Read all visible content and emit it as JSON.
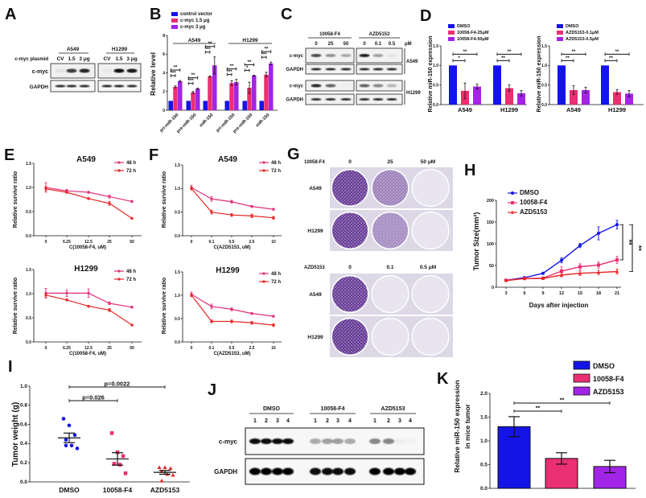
{
  "panel_labels": [
    "A",
    "B",
    "C",
    "D",
    "E",
    "F",
    "G",
    "H",
    "I",
    "J",
    "K"
  ],
  "colors": {
    "blue": "#1414e6",
    "pink": "#ea2f72",
    "purple": "#a224e6",
    "red": "#e82424",
    "magenta": "#e0307c",
    "crystal_violet": "#5a2a8c"
  },
  "blots": {
    "A": {
      "plasmid_label": "c-myc plasmid",
      "groups": [
        {
          "name": "A549",
          "lanes": [
            "CV",
            "1.5",
            "3 μg"
          ],
          "rows": [
            {
              "label": "c-myc",
              "intensity": [
                0.05,
                0.75,
                0.85
              ]
            },
            {
              "label": "GAPDH",
              "intensity": [
                0.85,
                0.85,
                0.85
              ]
            }
          ]
        },
        {
          "name": "H1299",
          "lanes": [
            "CV",
            "1.5",
            "3 μg"
          ],
          "rows": [
            {
              "label": "c-myc",
              "intensity": [
                0.03,
                0.95,
                0.9
              ]
            },
            {
              "label": "GAPDH",
              "intensity": [
                0.85,
                0.85,
                0.85
              ]
            }
          ]
        }
      ]
    },
    "C": {
      "groups": [
        {
          "name": "10058-F4",
          "lanes": [
            "0",
            "25",
            "50"
          ]
        },
        {
          "name": "AZD5153",
          "lanes": [
            "0",
            "0.1",
            "0.5"
          ]
        }
      ],
      "unit": "μM",
      "cells": [
        {
          "name": "A549",
          "rows": [
            {
              "label": "c-myc",
              "intensity": [
                [
                  0.7,
                  0.4,
                  0.3
                ],
                [
                  0.9,
                  0.35,
                  0.05
                ]
              ]
            },
            {
              "label": "GAPDH",
              "intensity": [
                [
                  0.85,
                  0.85,
                  0.85
                ],
                [
                  0.85,
                  0.85,
                  0.85
                ]
              ]
            }
          ]
        },
        {
          "name": "H1299",
          "rows": [
            {
              "label": "c-myc",
              "intensity": [
                [
                  0.85,
                  0.6,
                  0.02
                ],
                [
                  0.6,
                  0.45,
                  0.25
                ]
              ]
            },
            {
              "label": "GAPDH",
              "intensity": [
                [
                  0.85,
                  0.85,
                  0.85
                ],
                [
                  0.85,
                  0.85,
                  0.85
                ]
              ]
            }
          ]
        }
      ]
    },
    "J": {
      "groups": [
        {
          "name": "DMSO",
          "lanes": [
            "1",
            "2",
            "3",
            "4"
          ]
        },
        {
          "name": "10058-F4",
          "lanes": [
            "1",
            "2",
            "3",
            "4"
          ]
        },
        {
          "name": "AZD5153",
          "lanes": [
            "1",
            "2",
            "3",
            "4"
          ]
        }
      ],
      "rows": [
        {
          "label": "c-myc",
          "intensity": [
            0.95,
            0.95,
            0.95,
            0.95,
            0.3,
            0.35,
            0.35,
            0.3,
            0.45,
            0.45,
            0.03,
            0.02
          ]
        },
        {
          "label": "GAPDH",
          "intensity": [
            1,
            1,
            1,
            1,
            0.95,
            0.95,
            0.95,
            0.95,
            1,
            1,
            1,
            1
          ]
        }
      ]
    }
  },
  "colony_assay": {
    "blocks": [
      {
        "treatment": "10058-F4",
        "doses": [
          "0",
          "25",
          "50 μM"
        ],
        "rows": [
          {
            "cell": "A549",
            "density": [
              0.9,
              0.55,
              0.04
            ]
          },
          {
            "cell": "H1299",
            "density": [
              0.9,
              0.5,
              0.04
            ]
          }
        ]
      },
      {
        "treatment": "AZD5153",
        "doses": [
          "0",
          "0.1",
          "0.5 μM"
        ],
        "rows": [
          {
            "cell": "A549",
            "density": [
              0.9,
              0.04,
              0.04
            ]
          },
          {
            "cell": "H1299",
            "density": [
              0.92,
              0.04,
              0.04
            ]
          }
        ]
      }
    ]
  },
  "chart_data": [
    {
      "panel": "B",
      "type": "bar",
      "ylabel": "Relative level",
      "ylim": [
        0,
        8
      ],
      "yticks": [
        "0",
        "2",
        "4",
        "6",
        "8"
      ],
      "categories": [
        "pri-miR-150",
        "pre-miR-150",
        "miR-150",
        "pri-miR-150",
        "pre-miR-150",
        "miR-150"
      ],
      "groups": [
        "A549",
        "H1299"
      ],
      "series": [
        {
          "name": "control vector",
          "color": "#1414e6",
          "values": [
            1,
            1,
            1,
            1,
            1,
            1
          ],
          "errors": [
            0,
            0,
            0,
            0,
            0,
            0
          ]
        },
        {
          "name": "c-myc 1.5 μg",
          "color": "#ea2f72",
          "values": [
            2.5,
            1.9,
            3.6,
            2.9,
            2.4,
            3.8
          ],
          "errors": [
            0.1,
            0.1,
            0.05,
            0.25,
            0.6,
            0.25
          ]
        },
        {
          "name": "c-myc 3 μg",
          "color": "#a224e6",
          "values": [
            3.1,
            2.3,
            4.8,
            3.0,
            3.7,
            5.0
          ],
          "errors": [
            0.08,
            0.05,
            0.9,
            0.3,
            0.05,
            0.15
          ]
        }
      ],
      "significance": [
        [
          {
            "from": 0,
            "to": 1,
            "label": "***"
          },
          {
            "from": 0,
            "to": 2,
            "label": "**"
          }
        ],
        [
          {
            "from": 0,
            "to": 1,
            "label": "***"
          },
          {
            "from": 0,
            "to": 2,
            "label": "**"
          }
        ],
        [
          {
            "from": 0,
            "to": 1,
            "label": "***"
          },
          {
            "from": 0,
            "to": 2,
            "label": "**"
          }
        ],
        [
          {
            "from": 0,
            "to": 1,
            "label": "***"
          },
          {
            "from": 0,
            "to": 2,
            "label": "**"
          }
        ],
        [
          {
            "from": 0,
            "to": 1,
            "label": "*"
          },
          {
            "from": 0,
            "to": 2,
            "label": "**"
          }
        ],
        [
          {
            "from": 0,
            "to": 1,
            "label": "***"
          },
          {
            "from": 0,
            "to": 2,
            "label": "**"
          }
        ]
      ]
    },
    {
      "panel": "D",
      "type": "bar",
      "ylabel": "Relative miR-150 expression",
      "ylim": [
        0,
        1.5
      ],
      "yticks": [
        "0.0",
        "0.5",
        "1.0",
        "1.5"
      ],
      "categories": [
        "A549",
        "H1299"
      ],
      "series": [
        {
          "name": "DMSO",
          "color": "#1414e6",
          "values": [
            1,
            1
          ],
          "errors": [
            0,
            0
          ]
        },
        {
          "name": "10058-F4-25μM",
          "color": "#ea2f72",
          "values": [
            0.35,
            0.42
          ],
          "errors": [
            0.2,
            0.08
          ]
        },
        {
          "name": "10058-F4-50μM",
          "color": "#a224e6",
          "values": [
            0.46,
            0.29
          ],
          "errors": [
            0.06,
            0.07
          ]
        }
      ],
      "significance": [
        [
          {
            "from": 0,
            "to": 1,
            "label": "*"
          },
          {
            "from": 0,
            "to": 2,
            "label": "**"
          }
        ],
        [
          {
            "from": 0,
            "to": 1,
            "label": "**"
          },
          {
            "from": 0,
            "to": 2,
            "label": "**"
          }
        ]
      ]
    },
    {
      "panel": "D",
      "type": "bar",
      "ylabel": "Relative miR-150 expression",
      "ylim": [
        0,
        1.5
      ],
      "yticks": [
        "0.0",
        "0.5",
        "1.0",
        "1.5"
      ],
      "categories": [
        "A549",
        "H1299"
      ],
      "series": [
        {
          "name": "DMSO",
          "color": "#1414e6",
          "values": [
            1,
            1
          ],
          "errors": [
            0,
            0
          ]
        },
        {
          "name": "AZD5153-0.1μM",
          "color": "#ea2f72",
          "values": [
            0.37,
            0.32
          ],
          "errors": [
            0.11,
            0.06
          ]
        },
        {
          "name": "AZD5153-0.5μM",
          "color": "#a224e6",
          "values": [
            0.37,
            0.28
          ],
          "errors": [
            0.07,
            0.08
          ]
        }
      ],
      "significance": [
        [
          {
            "from": 0,
            "to": 1,
            "label": "**"
          },
          {
            "from": 0,
            "to": 2,
            "label": "**"
          }
        ],
        [
          {
            "from": 0,
            "to": 1,
            "label": "**"
          },
          {
            "from": 0,
            "to": 2,
            "label": "**"
          }
        ]
      ]
    },
    {
      "panel": "E",
      "type": "line",
      "title": "A549",
      "xlabel": "C(10058-F4, uM)",
      "ylabel": "Relative survive ratio",
      "ylim": [
        0,
        1.5
      ],
      "yticks": [
        "0.0",
        "0.5",
        "1.0",
        "1.5"
      ],
      "x": [
        "0",
        "6.25",
        "12.5",
        "25",
        "50"
      ],
      "series": [
        {
          "name": "48 h",
          "color": "#e0307c",
          "values": [
            1.0,
            0.93,
            0.9,
            0.81,
            0.71
          ],
          "errors": [
            0.1,
            0.03,
            0.02,
            0.03,
            0.02
          ]
        },
        {
          "name": "72 h",
          "color": "#e82424",
          "values": [
            0.97,
            0.9,
            0.77,
            0.67,
            0.36
          ],
          "errors": [
            0.04,
            0.02,
            0.02,
            0.04,
            0.02
          ]
        }
      ]
    },
    {
      "panel": "E",
      "type": "line",
      "title": "H1299",
      "xlabel": "C(10058-F4, uM)",
      "ylabel": "Relative survive ratio",
      "ylim": [
        0,
        1.5
      ],
      "yticks": [
        "0.0",
        "0.5",
        "1.0",
        "1.5"
      ],
      "x": [
        "0",
        "6.25",
        "12.5",
        "25",
        "50"
      ],
      "series": [
        {
          "name": "48 h",
          "color": "#e0307c",
          "values": [
            1.01,
            1.01,
            1.01,
            0.8,
            0.72
          ],
          "errors": [
            0.1,
            0.07,
            0.09,
            0.03,
            0.02
          ]
        },
        {
          "name": "72 h",
          "color": "#e82424",
          "values": [
            0.97,
            0.87,
            0.74,
            0.66,
            0.35
          ],
          "errors": [
            0.04,
            0.02,
            0.02,
            0.03,
            0.02
          ]
        }
      ]
    },
    {
      "panel": "F",
      "type": "line",
      "title": "A549",
      "xlabel": "C(AZD5153, uM)",
      "ylabel": "Relative survive ratio",
      "ylim": [
        0,
        1.5
      ],
      "yticks": [
        "0.0",
        "0.5",
        "1.0",
        "1.5"
      ],
      "x": [
        "0",
        "0.1",
        "0.5",
        "2.5",
        "10"
      ],
      "series": [
        {
          "name": "48 h",
          "color": "#e0307c",
          "values": [
            1.02,
            0.78,
            0.72,
            0.62,
            0.56
          ],
          "errors": [
            0.05,
            0.05,
            0.03,
            0.02,
            0.02
          ]
        },
        {
          "name": "72 h",
          "color": "#e82424",
          "values": [
            1.0,
            0.5,
            0.44,
            0.42,
            0.38
          ],
          "errors": [
            0.03,
            0.04,
            0.03,
            0.04,
            0.03
          ]
        }
      ]
    },
    {
      "panel": "F",
      "type": "line",
      "title": "H1299",
      "xlabel": "C(AZD5153, uM)",
      "ylabel": "Relative survive ratio",
      "ylim": [
        0,
        1.5
      ],
      "yticks": [
        "0.0",
        "0.5",
        "1.0",
        "1.5"
      ],
      "x": [
        "0",
        "0.1",
        "0.5",
        "2.5",
        "10"
      ],
      "series": [
        {
          "name": "48 h",
          "color": "#e0307c",
          "values": [
            1.02,
            0.76,
            0.7,
            0.61,
            0.55
          ],
          "errors": [
            0.05,
            0.05,
            0.03,
            0.02,
            0.02
          ]
        },
        {
          "name": "72 h",
          "color": "#e82424",
          "values": [
            1.0,
            0.44,
            0.44,
            0.41,
            0.36
          ],
          "errors": [
            0.03,
            0.03,
            0.03,
            0.03,
            0.03
          ]
        }
      ]
    },
    {
      "panel": "H",
      "type": "line",
      "xlabel": "Days after injection",
      "ylabel": "Tumor Size(mm²)",
      "ylim": [
        0,
        200
      ],
      "yticks": [
        "0",
        "50",
        "100",
        "150",
        "200"
      ],
      "x": [
        "3",
        "6",
        "9",
        "12",
        "15",
        "18",
        "21"
      ],
      "series": [
        {
          "name": "DMSO",
          "color": "#1414e6",
          "marker": "circle",
          "values": [
            16,
            22,
            32,
            62,
            96,
            124,
            144
          ],
          "errors": [
            2,
            2,
            2,
            6,
            5,
            15,
            10
          ]
        },
        {
          "name": "10058-F4",
          "color": "#ea2f72",
          "marker": "square",
          "values": [
            16,
            20,
            21,
            37,
            47,
            51,
            63
          ],
          "errors": [
            2,
            2,
            2,
            10,
            7,
            7,
            8
          ]
        },
        {
          "name": "AZD5153",
          "color": "#e82424",
          "marker": "triangle",
          "values": [
            15,
            20,
            20,
            28,
            32,
            34,
            36
          ],
          "errors": [
            2,
            2,
            2,
            4,
            5,
            5,
            6
          ]
        }
      ],
      "significance": [
        {
          "between": [
            "DMSO",
            "10058-F4"
          ],
          "label": "**"
        },
        {
          "between": [
            "DMSO",
            "AZD5153"
          ],
          "label": "**"
        }
      ]
    },
    {
      "panel": "I",
      "type": "scatter",
      "ylabel": "Tumor weight (g)",
      "ylim": [
        0,
        1.0
      ],
      "yticks": [
        "0.0",
        "0.2",
        "0.4",
        "0.6",
        "0.8",
        "1.0"
      ],
      "categories": [
        "DMSO",
        "10058-F4",
        "AZD5153"
      ],
      "groups": [
        {
          "name": "DMSO",
          "color": "#1414e6",
          "marker": "circle",
          "points": [
            0.66,
            0.59,
            0.49,
            0.44,
            0.38,
            0.35,
            0.38
          ],
          "mean": 0.46,
          "sem": 0.05
        },
        {
          "name": "10058-F4",
          "color": "#ea2f72",
          "marker": "square",
          "points": [
            0.51,
            0.31,
            0.27,
            0.19,
            0.18,
            0.09
          ],
          "mean": 0.24,
          "sem": 0.065
        },
        {
          "name": "AZD5153",
          "color": "#e82424",
          "marker": "triangle",
          "points": [
            0.15,
            0.15,
            0.14,
            0.11,
            0.08,
            0.07,
            0.01
          ],
          "mean": 0.1,
          "sem": 0.02
        }
      ],
      "comparisons": [
        {
          "from": 0,
          "to": 2,
          "label": "p=0.0022"
        },
        {
          "from": 0,
          "to": 1,
          "label": "p=0.026"
        }
      ]
    },
    {
      "panel": "K",
      "type": "bar",
      "ylabel": [
        "Relative miR-150 expression",
        "in mice tumor"
      ],
      "ylim": [
        0,
        2.0
      ],
      "yticks": [
        "0.0",
        "0.5",
        "1.0",
        "1.5",
        "2.0"
      ],
      "series": [
        {
          "name": "DMSO",
          "color": "#1414e6",
          "value": 1.3,
          "error": 0.21
        },
        {
          "name": "10058-F4",
          "color": "#ea2f72",
          "value": 0.63,
          "error": 0.12
        },
        {
          "name": "AZD5153",
          "color": "#a224e6",
          "value": 0.46,
          "error": 0.13
        }
      ],
      "significance": [
        {
          "from": 0,
          "to": 2,
          "label": "**"
        },
        {
          "from": 0,
          "to": 1,
          "label": "**"
        }
      ]
    }
  ]
}
